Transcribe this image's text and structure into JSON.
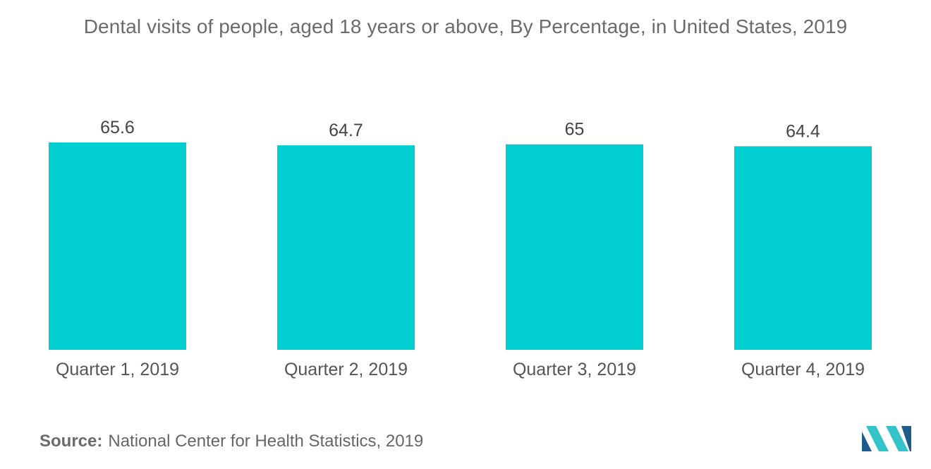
{
  "chart_data": {
    "type": "bar",
    "title": "Dental visits of people, aged 18 years or above, By Percentage, in United States, 2019",
    "categories": [
      "Quarter 1, 2019",
      "Quarter 2, 2019",
      "Quarter 3, 2019",
      "Quarter 4, 2019"
    ],
    "values": [
      65.6,
      64.7,
      65,
      64.4
    ],
    "value_labels": [
      "65.6",
      "64.7",
      "65",
      "64.4"
    ],
    "xlabel": "",
    "ylabel": "",
    "ylim": [
      0,
      65.6
    ],
    "grid": false,
    "legend": "none",
    "bar_color": "#00ced1"
  },
  "source": {
    "label": "Source:",
    "text": "National Center for Health Statistics, 2019"
  },
  "colors": {
    "bar": "#00ced1",
    "logo_dark": "#1f5c8c",
    "logo_light": "#33c3c9"
  }
}
